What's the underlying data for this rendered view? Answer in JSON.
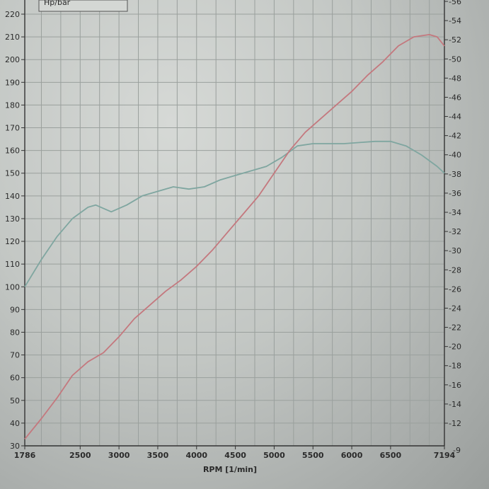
{
  "chart_data": {
    "type": "line",
    "xlabel": "RPM  [1/min]",
    "legend_label": "Hp/bar",
    "x_ticks": [
      1786,
      2500,
      3000,
      3500,
      4000,
      4500,
      5000,
      5500,
      6000,
      6500,
      7194
    ],
    "x_tick_labels": [
      "1786",
      "2500",
      "3000",
      "3500",
      "4000",
      "4500",
      "5000",
      "5500",
      "6000",
      "6500",
      "7194"
    ],
    "xlim": [
      1786,
      7194
    ],
    "left_ylim": [
      30,
      220
    ],
    "left_ticks": [
      30,
      40,
      50,
      60,
      70,
      80,
      90,
      100,
      110,
      120,
      130,
      140,
      150,
      160,
      170,
      180,
      190,
      200,
      210,
      220
    ],
    "right_ylim": [
      10,
      56
    ],
    "right_ticks": [
      12,
      14,
      16,
      18,
      20,
      22,
      24,
      26,
      28,
      30,
      32,
      34,
      36,
      38,
      40,
      42,
      44,
      46,
      48,
      50,
      52,
      54,
      56
    ],
    "right_bottom_label": "-9",
    "grid": true,
    "series": [
      {
        "axis": "left",
        "color": "#7fa6a0",
        "x": [
          1786,
          2000,
          2200,
          2400,
          2600,
          2700,
          2900,
          3100,
          3300,
          3500,
          3700,
          3900,
          4100,
          4300,
          4500,
          4700,
          4900,
          5100,
          5300,
          5500,
          5700,
          5900,
          6100,
          6300,
          6500,
          6700,
          6900,
          7100,
          7194
        ],
        "values": [
          100,
          112,
          122,
          130,
          135,
          136,
          133,
          136,
          140,
          142,
          144,
          143,
          144,
          147,
          149,
          151,
          153,
          157,
          162,
          163,
          163,
          163,
          163.5,
          164,
          164,
          162,
          158,
          153,
          150
        ]
      },
      {
        "axis": "left",
        "color": "#c4787e",
        "x": [
          1786,
          2000,
          2200,
          2400,
          2600,
          2800,
          3000,
          3200,
          3400,
          3600,
          3800,
          4000,
          4200,
          4400,
          4600,
          4800,
          5000,
          5200,
          5400,
          5600,
          5800,
          6000,
          6200,
          6400,
          6600,
          6800,
          7000,
          7100,
          7194
        ],
        "values": [
          33,
          42,
          51,
          61,
          67,
          71,
          78,
          86,
          92,
          98,
          103,
          109,
          116,
          124,
          132,
          140,
          150,
          160,
          168,
          174,
          180,
          186,
          193,
          199,
          206,
          210,
          211,
          210,
          206
        ]
      }
    ]
  }
}
